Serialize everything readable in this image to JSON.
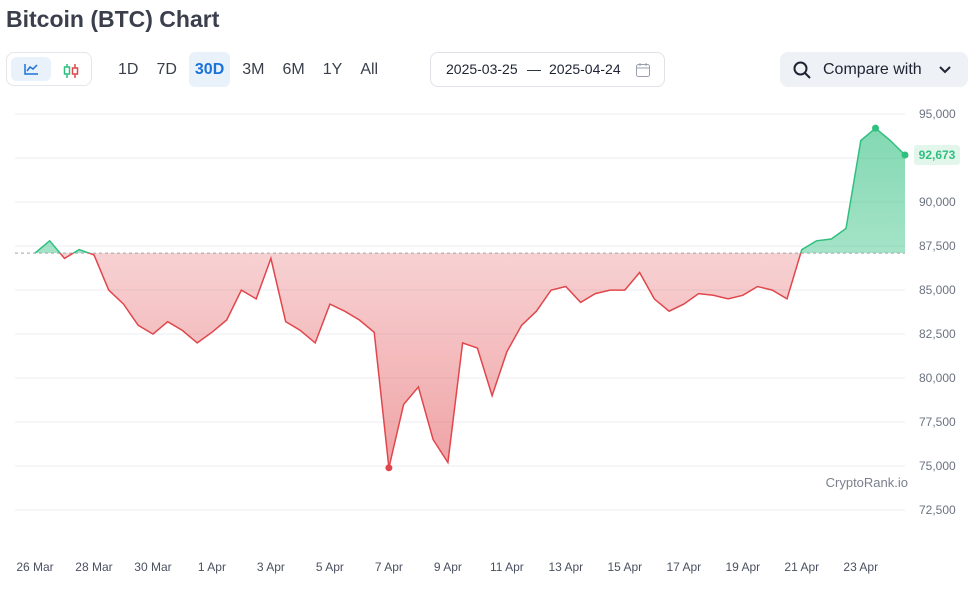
{
  "title": "Bitcoin (BTC) Chart",
  "controls": {
    "ranges": [
      "1D",
      "7D",
      "30D",
      "3M",
      "6M",
      "1Y",
      "All"
    ],
    "active_range": 2,
    "date_from": "2025-03-25",
    "date_separator": "—",
    "date_to": "2025-04-24",
    "compare": "Compare with"
  },
  "chart_data": {
    "type": "line",
    "categories": [
      "26 Mar",
      null,
      null,
      null,
      "28 Mar",
      null,
      null,
      null,
      "30 Mar",
      null,
      null,
      null,
      "1 Apr",
      null,
      null,
      null,
      "3 Apr",
      null,
      null,
      null,
      "5 Apr",
      null,
      null,
      null,
      "7 Apr",
      null,
      null,
      null,
      "9 Apr",
      null,
      null,
      null,
      "11 Apr",
      null,
      null,
      null,
      "13 Apr",
      null,
      null,
      null,
      "15 Apr",
      null,
      null,
      null,
      "17 Apr",
      null,
      null,
      null,
      "19 Apr",
      null,
      null,
      null,
      "21 Apr",
      null,
      null,
      null,
      "23 Apr",
      null,
      null,
      null
    ],
    "values": [
      87100,
      87800,
      86800,
      87300,
      87000,
      85000,
      84200,
      83000,
      82500,
      83200,
      82700,
      82000,
      82600,
      83300,
      85000,
      84500,
      86800,
      83200,
      82700,
      82000,
      84200,
      83800,
      83300,
      82600,
      74900,
      78500,
      79500,
      76500,
      75200,
      82000,
      81700,
      79000,
      81500,
      83000,
      83800,
      85000,
      85200,
      84300,
      84800,
      85000,
      85000,
      86000,
      84500,
      83800,
      84200,
      84800,
      84700,
      84500,
      84700,
      85200,
      85000,
      84500,
      87300,
      87800,
      87900,
      88500,
      93500,
      94200,
      93500,
      92673
    ],
    "value_labels": [
      null,
      null,
      null,
      null,
      null,
      null,
      null,
      null,
      null,
      null,
      null,
      null,
      null,
      null,
      null,
      null,
      null,
      null,
      null,
      null,
      null,
      null,
      null,
      null,
      null,
      null,
      null,
      null,
      null,
      null,
      null,
      null,
      null,
      null,
      null,
      null,
      null,
      null,
      null,
      null,
      null,
      null,
      null,
      null,
      null,
      null,
      null,
      null,
      null,
      null,
      null,
      null,
      null,
      null,
      null,
      null,
      null,
      null,
      null,
      "92,673"
    ],
    "up_color": "#2fbf7f",
    "down_color": "#e0474c",
    "ylim": [
      71650,
      95800
    ],
    "yticks": [
      {
        "value": 72500,
        "label": "72,500"
      },
      {
        "value": 75000,
        "label": "75,000"
      },
      {
        "value": 77500,
        "label": "77,500"
      },
      {
        "value": 80000,
        "label": "80,000"
      },
      {
        "value": 82500,
        "label": "82,500"
      },
      {
        "value": 85000,
        "label": "85,000"
      },
      {
        "value": 87500,
        "label": "87,500"
      },
      {
        "value": 90000,
        "label": "90,000"
      },
      {
        "value": 92500,
        "label": "92,500"
      },
      {
        "value": 95000,
        "label": "95,000"
      }
    ],
    "grid": true,
    "watermark": "CryptoRank.io"
  }
}
